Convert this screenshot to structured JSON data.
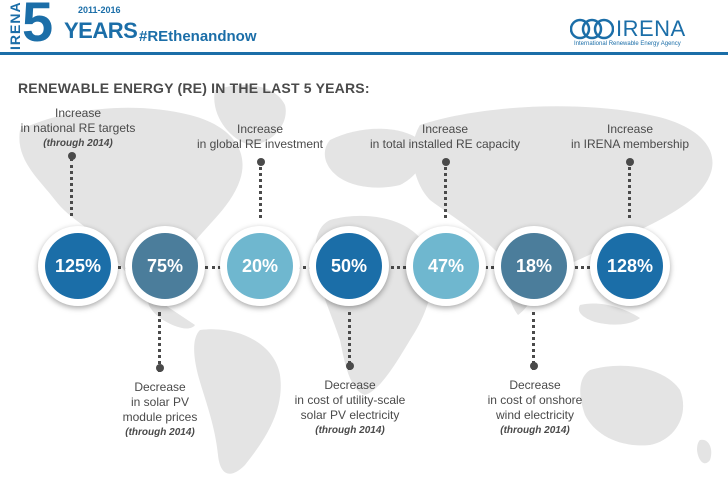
{
  "header": {
    "side_word": "IRENA",
    "big_number": "5",
    "year_range": "2011-2016",
    "years_word": "YEARS",
    "hashtag": "#REthenandnow",
    "brand_name": "IRENA",
    "brand_subtitle": "International Renewable Energy Agency"
  },
  "title": "RENEWABLE ENERGY (RE) IN THE LAST 5 YEARS:",
  "colors": {
    "dark_blue": "#1b6ea8",
    "slate_blue": "#4b7d9b",
    "light_blue": "#6fb7cf",
    "text_gray": "#4a4a4a",
    "map_gray": "#e4e4e4"
  },
  "stats": [
    {
      "value": "125%",
      "color": "#1b6ea8",
      "label_line1": "Increase",
      "label_line2": "in national RE targets",
      "label_line3": "",
      "note": "(through 2014)"
    },
    {
      "value": "75%",
      "color": "#4b7d9b",
      "label_line1": "Decrease",
      "label_line2": "in solar PV",
      "label_line3": "module prices",
      "note": "(through 2014)"
    },
    {
      "value": "20%",
      "color": "#6fb7cf",
      "label_line1": "Increase",
      "label_line2": "in global RE investment",
      "label_line3": "",
      "note": ""
    },
    {
      "value": "50%",
      "color": "#1b6ea8",
      "label_line1": "Decrease",
      "label_line2": "in cost of utility-scale",
      "label_line3": "solar PV electricity",
      "note": "(through 2014)"
    },
    {
      "value": "47%",
      "color": "#6fb7cf",
      "label_line1": "Increase",
      "label_line2": "in total installed RE capacity",
      "label_line3": "",
      "note": ""
    },
    {
      "value": "18%",
      "color": "#4b7d9b",
      "label_line1": "Decrease",
      "label_line2": "in cost of onshore",
      "label_line3": "wind electricity",
      "note": "(through 2014)"
    },
    {
      "value": "128%",
      "color": "#1b6ea8",
      "label_line1": "Increase",
      "label_line2": "in IRENA membership",
      "label_line3": "",
      "note": ""
    }
  ]
}
